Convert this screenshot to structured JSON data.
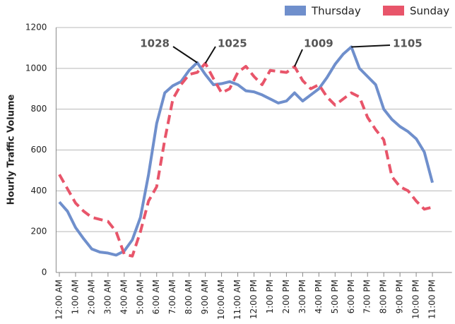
{
  "chart_data": {
    "type": "line",
    "y_label": "Hourly Traffic Volume",
    "x": [
      0,
      0.5,
      1,
      1.5,
      2,
      2.5,
      3,
      3.5,
      4,
      4.5,
      5,
      5.5,
      6,
      6.5,
      7,
      7.5,
      8,
      8.5,
      9,
      9.5,
      10,
      10.5,
      11,
      11.5,
      12,
      12.5,
      13,
      13.5,
      14,
      14.5,
      15,
      15.5,
      16,
      16.5,
      17,
      17.5,
      18,
      18.5,
      19,
      19.5,
      20,
      20.5,
      21,
      21.5,
      22,
      22.5,
      23
    ],
    "series": [
      {
        "name": "Thursday",
        "color": "#6f8fcc",
        "dashed": false,
        "values": [
          345,
          300,
          220,
          165,
          115,
          100,
          95,
          85,
          105,
          160,
          270,
          480,
          730,
          880,
          915,
          935,
          990,
          1028,
          970,
          920,
          925,
          935,
          920,
          890,
          885,
          870,
          850,
          830,
          840,
          880,
          840,
          870,
          900,
          955,
          1020,
          1070,
          1105,
          1000,
          960,
          920,
          800,
          750,
          715,
          690,
          655,
          590,
          440
        ]
      },
      {
        "name": "Sunday",
        "color": "#e8556a",
        "dashed": true,
        "values": [
          480,
          410,
          340,
          300,
          270,
          260,
          250,
          200,
          90,
          80,
          200,
          350,
          420,
          650,
          850,
          920,
          970,
          980,
          1025,
          950,
          880,
          900,
          980,
          1010,
          960,
          920,
          990,
          985,
          980,
          1009,
          940,
          900,
          920,
          860,
          820,
          850,
          880,
          860,
          760,
          700,
          650,
          470,
          420,
          400,
          350,
          310,
          320
        ]
      }
    ],
    "annotations": [
      {
        "text": "1028",
        "x": 8.5,
        "y": 1028
      },
      {
        "text": "1025",
        "x": 9,
        "y": 1025
      },
      {
        "text": "1009",
        "x": 14.5,
        "y": 1009
      },
      {
        "text": "1105",
        "x": 18,
        "y": 1105
      }
    ],
    "xlim": [
      -0.2,
      24.2
    ],
    "xticks": [
      {
        "value": 0,
        "label": "12:00 AM"
      },
      {
        "value": 1,
        "label": "1:00 AM"
      },
      {
        "value": 2,
        "label": "2:00 AM"
      },
      {
        "value": 3,
        "label": "3:00 AM"
      },
      {
        "value": 4,
        "label": "4:00 AM"
      },
      {
        "value": 5,
        "label": "5:00 AM"
      },
      {
        "value": 6,
        "label": "6:00 AM"
      },
      {
        "value": 7,
        "label": "7:00 AM"
      },
      {
        "value": 8,
        "label": "8:00 AM"
      },
      {
        "value": 9,
        "label": "9:00 AM"
      },
      {
        "value": 10,
        "label": "10:00 AM"
      },
      {
        "value": 11,
        "label": "11:00 AM"
      },
      {
        "value": 12,
        "label": "12:00 PM"
      },
      {
        "value": 13,
        "label": "1:00 PM"
      },
      {
        "value": 14,
        "label": "2:00 PM"
      },
      {
        "value": 15,
        "label": "3:00 PM"
      },
      {
        "value": 16,
        "label": "4:00 PM"
      },
      {
        "value": 17,
        "label": "5:00 PM"
      },
      {
        "value": 18,
        "label": "6:00 PM"
      },
      {
        "value": 19,
        "label": "7:00 PM"
      },
      {
        "value": 20,
        "label": "8:00 PM"
      },
      {
        "value": 21,
        "label": "9:00 PM"
      },
      {
        "value": 22,
        "label": "10:00 PM"
      },
      {
        "value": 23,
        "label": "11:00 PM"
      }
    ],
    "ylim": [
      0,
      1200
    ],
    "yticks": [
      0,
      200,
      400,
      600,
      800,
      1000,
      1200
    ],
    "grid": true,
    "legend": "top-right"
  }
}
